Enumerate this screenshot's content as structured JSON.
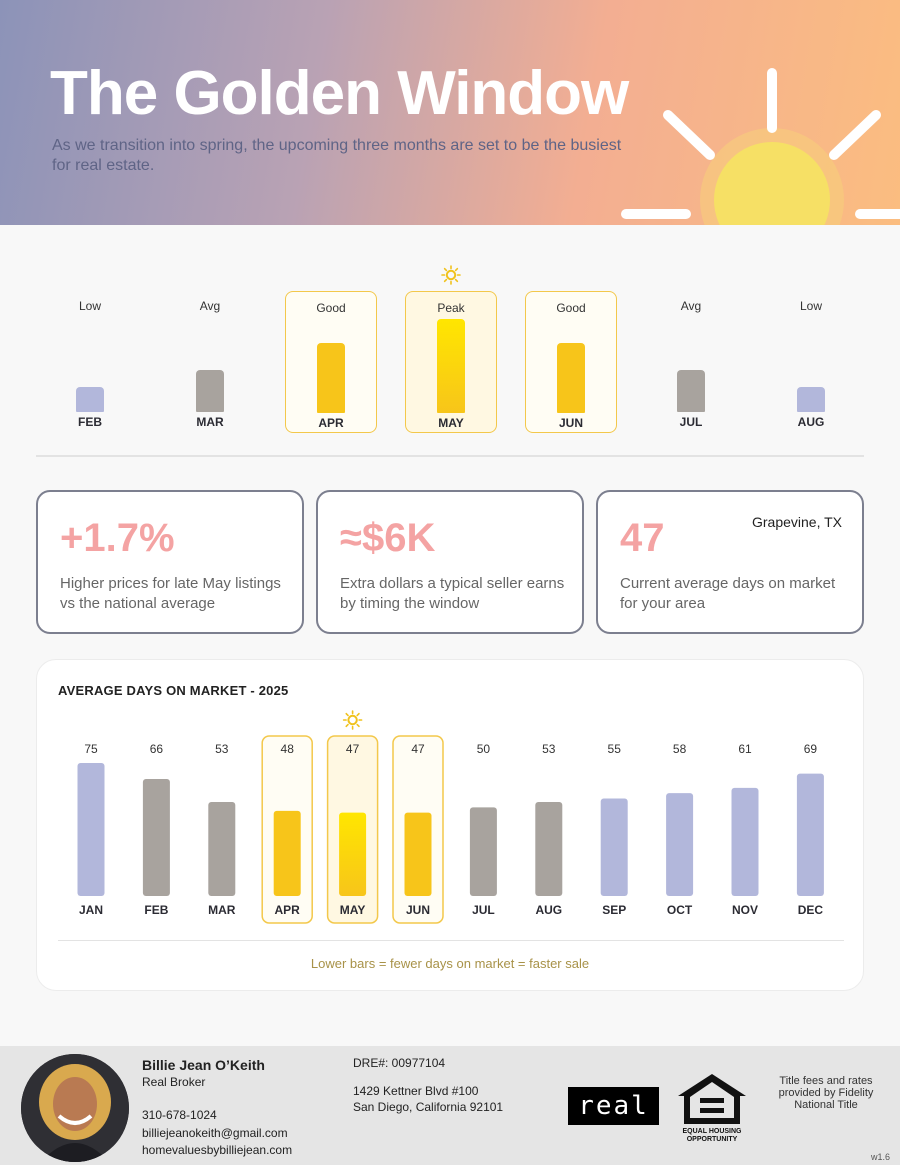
{
  "header": {
    "title": "The Golden Window",
    "subtitle": "As we transition into spring, the upcoming three months are set to be the busiest for real estate."
  },
  "colors": {
    "gold": "#f7c51a",
    "gold_light": "#ffe600",
    "gray_bar": "#a8a39e",
    "blue_bar": "#b2b7db",
    "accent_pink": "#f4a3a3",
    "highlight_border": "#f3c84b"
  },
  "season_strip": {
    "months": [
      {
        "month": "FEB",
        "level": "Low",
        "intensity": 1,
        "tier": "low",
        "highlight": false
      },
      {
        "month": "MAR",
        "level": "Avg",
        "intensity": 2,
        "tier": "avg",
        "highlight": false
      },
      {
        "month": "APR",
        "level": "Good",
        "intensity": 3,
        "tier": "good",
        "highlight": true
      },
      {
        "month": "MAY",
        "level": "Peak",
        "intensity": 4,
        "tier": "peak",
        "highlight": true
      },
      {
        "month": "JUN",
        "level": "Good",
        "intensity": 3,
        "tier": "good",
        "highlight": true
      },
      {
        "month": "JUL",
        "level": "Avg",
        "intensity": 2,
        "tier": "avg",
        "highlight": false
      },
      {
        "month": "AUG",
        "level": "Low",
        "intensity": 1,
        "tier": "low",
        "highlight": false
      }
    ]
  },
  "stats": [
    {
      "value": "+1.7%",
      "description": "Higher prices for late May listings vs the national average"
    },
    {
      "value": "≈$6K",
      "description": "Extra dollars a typical seller earns by timing the window"
    },
    {
      "value": "47",
      "description": "Current average days on market for your area",
      "location": "Grapevine, TX"
    }
  ],
  "chart_data": {
    "type": "bar",
    "title": "AVERAGE DAYS ON MARKET - 2025",
    "categories": [
      "JAN",
      "FEB",
      "MAR",
      "APR",
      "MAY",
      "JUN",
      "JUL",
      "AUG",
      "SEP",
      "OCT",
      "NOV",
      "DEC"
    ],
    "values": [
      75,
      66,
      53,
      48,
      47,
      47,
      50,
      53,
      55,
      58,
      61,
      69
    ],
    "bar_colors": [
      "blue",
      "gray",
      "gray",
      "gold",
      "gold",
      "gold",
      "gray",
      "gray",
      "blue",
      "blue",
      "blue",
      "blue"
    ],
    "highlighted": [
      "APR",
      "MAY",
      "JUN"
    ],
    "data_labels": true,
    "grid": false,
    "note": "Lower bars = fewer days on market = faster sale"
  },
  "agent": {
    "name": "Billie Jean O’Keith",
    "role": "Real Broker",
    "phone": "310-678-1024",
    "email": "billiejeanokeith@gmail.com",
    "website": "homevaluesbybilliejean.com",
    "dre": "DRE#: 00977104",
    "address_line1": "1429 Kettner Blvd #100",
    "address_line2": "San Diego, California 92101"
  },
  "footer": {
    "brand_logo": "real",
    "eho_line1": "EQUAL HOUSING",
    "eho_line2": "OPPORTUNITY",
    "title_note": "Title fees and rates provided by Fidelity National Title",
    "version": "w1.6"
  },
  "icons": {
    "hero": "sun-icon",
    "peak": "sun-small-icon"
  }
}
